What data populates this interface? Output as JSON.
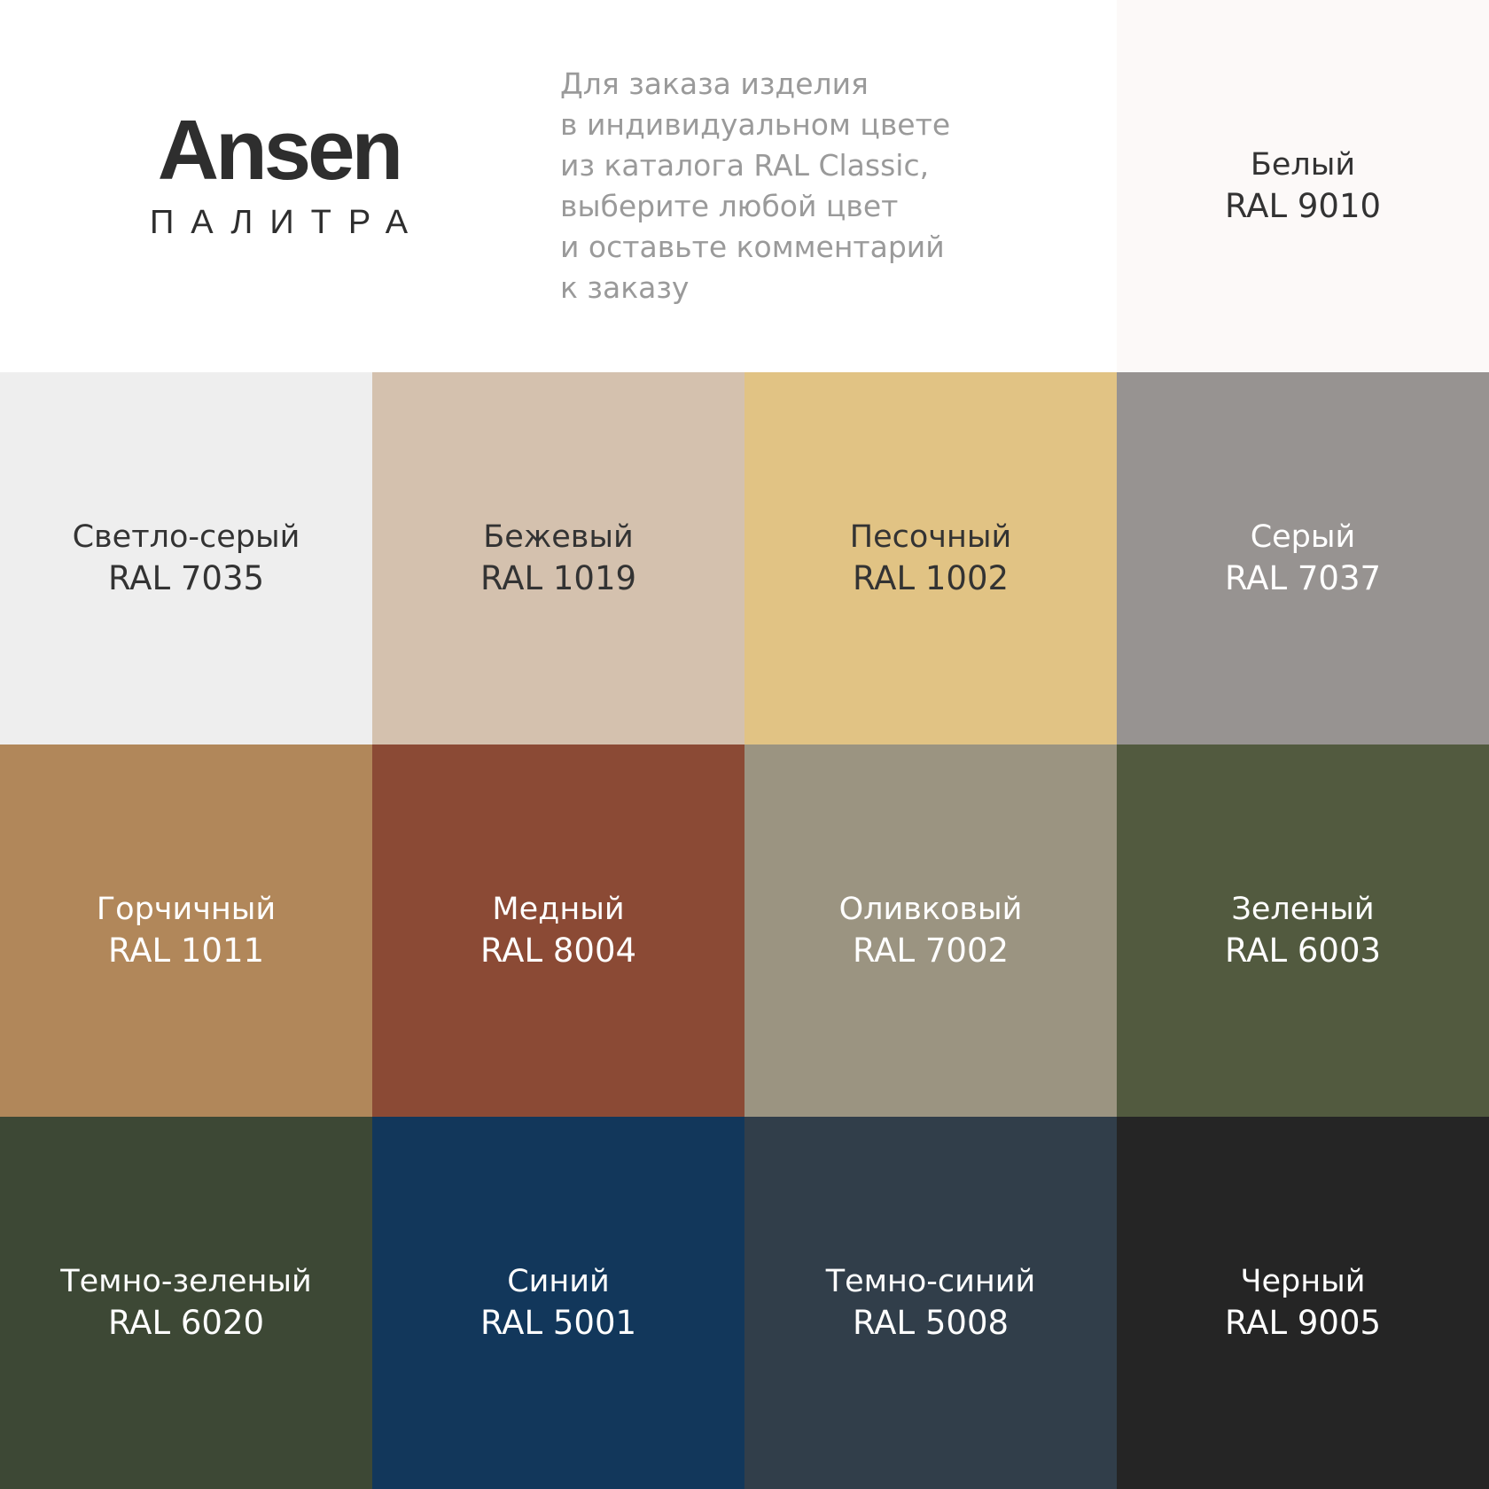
{
  "logo": {
    "brand": "Ansen",
    "subtitle": "ПАЛИТРА"
  },
  "description": [
    "Для заказа изделия",
    "в индивидуальном цвете",
    "из каталога RAL Classic,",
    "выберите любой цвет",
    "и оставьте комментарий",
    "к заказу"
  ],
  "swatches": [
    {
      "name": "Белый",
      "code": "RAL 9010",
      "color": "#fcf9f8",
      "text": "#333333"
    },
    {
      "name": "Светло-серый",
      "code": "RAL 7035",
      "color": "#eeeeee",
      "text": "#333333"
    },
    {
      "name": "Бежевый",
      "code": "RAL 1019",
      "color": "#d4c1ae",
      "text": "#333333"
    },
    {
      "name": "Песочный",
      "code": "RAL 1002",
      "color": "#e1c384",
      "text": "#333333"
    },
    {
      "name": "Серый",
      "code": "RAL 7037",
      "color": "#979391",
      "text": "#ffffff"
    },
    {
      "name": "Горчичный",
      "code": "RAL 1011",
      "color": "#b1875a",
      "text": "#ffffff"
    },
    {
      "name": "Медный",
      "code": "RAL 8004",
      "color": "#8b4a35",
      "text": "#ffffff"
    },
    {
      "name": "Оливковый",
      "code": "RAL 7002",
      "color": "#9b9481",
      "text": "#ffffff"
    },
    {
      "name": "Зеленый",
      "code": "RAL 6003",
      "color": "#525a3f",
      "text": "#ffffff"
    },
    {
      "name": "Темно-зеленый",
      "code": "RAL 6020",
      "color": "#3d4835",
      "text": "#ffffff"
    },
    {
      "name": "Синий",
      "code": "RAL 5001",
      "color": "#12375b",
      "text": "#ffffff"
    },
    {
      "name": "Темно-синий",
      "code": "RAL 5008",
      "color": "#313e4a",
      "text": "#ffffff"
    },
    {
      "name": "Черный",
      "code": "RAL 9005",
      "color": "#252525",
      "text": "#ffffff"
    }
  ]
}
